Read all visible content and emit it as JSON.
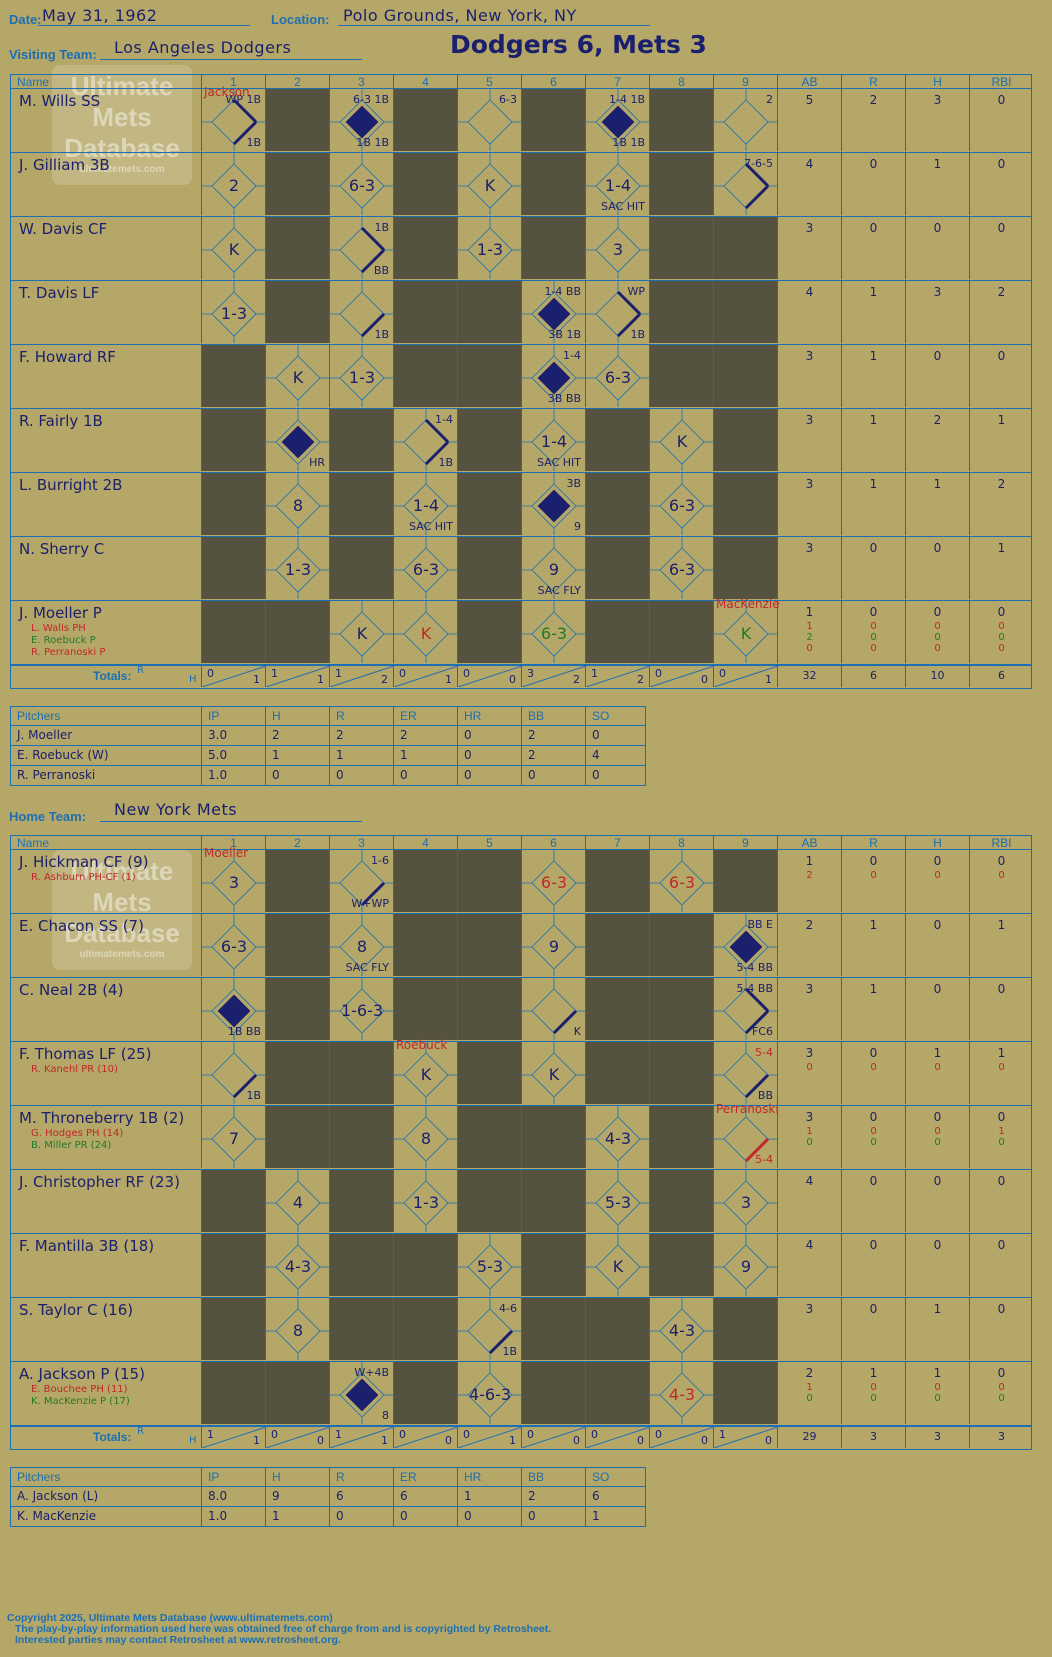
{
  "header": {
    "date_label": "Date:",
    "date": "May 31, 1962",
    "location_label": "Location:",
    "location": "Polo Grounds, New York, NY",
    "visiting_label": "Visiting Team:",
    "visiting_team": "Los Angeles Dodgers",
    "home_label": "Home Team:",
    "home_team": "New York Mets",
    "result": "Dodgers 6, Mets 3"
  },
  "logo": {
    "line1": "Ultimate",
    "line2": "Mets",
    "line3": "Database",
    "url": "ultimatemets.com"
  },
  "columns": [
    "Name",
    "1",
    "2",
    "3",
    "4",
    "5",
    "6",
    "7",
    "8",
    "9",
    "AB",
    "R",
    "H",
    "RBI"
  ],
  "totals_label": "Totals:",
  "rh_labels": {
    "r": "R",
    "h": "H"
  },
  "visitors": {
    "players": [
      {
        "name": "M. Wills SS",
        "stats": [
          "5",
          "2",
          "3",
          "0"
        ]
      },
      {
        "name": "J. Gilliam 3B",
        "stats": [
          "4",
          "0",
          "1",
          "0"
        ]
      },
      {
        "name": "W. Davis CF",
        "stats": [
          "3",
          "0",
          "0",
          "0"
        ]
      },
      {
        "name": "T. Davis LF",
        "stats": [
          "4",
          "1",
          "3",
          "2"
        ]
      },
      {
        "name": "F. Howard RF",
        "stats": [
          "3",
          "1",
          "0",
          "0"
        ]
      },
      {
        "name": "R. Fairly 1B",
        "stats": [
          "3",
          "1",
          "2",
          "1"
        ]
      },
      {
        "name": "L. Burright 2B",
        "stats": [
          "3",
          "1",
          "1",
          "2"
        ]
      },
      {
        "name": "N. Sherry C",
        "stats": [
          "3",
          "0",
          "0",
          "1"
        ]
      },
      {
        "name": "J. Moeller P",
        "stats": [
          "1",
          "0",
          "0",
          "0"
        ],
        "subs": [
          {
            "name": "L. Walls PH",
            "stats": [
              "1",
              "0",
              "0",
              "0"
            ],
            "color": "red"
          },
          {
            "name": "E. Roebuck P",
            "stats": [
              "2",
              "0",
              "0",
              "0"
            ],
            "color": "green"
          },
          {
            "name": "R. Perranoski P",
            "stats": [
              "0",
              "0",
              "0",
              "0"
            ],
            "color": "red"
          }
        ]
      }
    ],
    "innings": [
      [
        {
          "t": "WP 1B",
          "b": "1B",
          "note": "Jackson",
          "bases": 2
        },
        {
          "t": "",
          "dark": true
        },
        {
          "t": "6-3 1B",
          "b": "1B 1B",
          "run": true
        },
        {
          "t": "",
          "dark": true
        },
        {
          "t": "6-3",
          "c": ""
        },
        {
          "t": "",
          "dark": true
        },
        {
          "t": "1-4 1B",
          "b": "1B 1B",
          "run": true
        },
        {
          "t": "",
          "dark": true
        },
        {
          "t": "2",
          "c": ""
        }
      ],
      [
        {
          "c": "2"
        },
        {
          "dark": true
        },
        {
          "c": "6-3"
        },
        {
          "dark": true
        },
        {
          "c": "K"
        },
        {
          "dark": true
        },
        {
          "c": "1-4",
          "b": "SAC HIT"
        },
        {
          "dark": true
        },
        {
          "t": "7-6-5",
          "bases": 2
        }
      ],
      [
        {
          "c": "K"
        },
        {
          "dark": true
        },
        {
          "t": "1B",
          "b": "BB",
          "bases": 2
        },
        {
          "dark": true
        },
        {
          "c": "1-3"
        },
        {
          "dark": true
        },
        {
          "c": "3"
        },
        {
          "dark": true
        },
        {
          "dark": true
        }
      ],
      [
        {
          "c": "1-3"
        },
        {
          "dark": true
        },
        {
          "b": "1B",
          "bases": 1
        },
        {
          "dark": true
        },
        {
          "dark": true
        },
        {
          "t": "1-4 BB",
          "b": "3B 1B",
          "run": true
        },
        {
          "t": "WP",
          "b": "1B",
          "bases": 2
        },
        {
          "dark": true
        },
        {
          "dark": true
        }
      ],
      [
        {
          "dark": true
        },
        {
          "c": "K"
        },
        {
          "c": "1-3"
        },
        {
          "dark": true
        },
        {
          "dark": true
        },
        {
          "t": "1-4",
          "b": "3B BB",
          "run": true
        },
        {
          "c": "6-3"
        },
        {
          "dark": true
        },
        {
          "dark": true
        }
      ],
      [
        {
          "dark": true
        },
        {
          "b": "HR",
          "run": true
        },
        {
          "dark": true
        },
        {
          "t": "1-4",
          "b": "1B",
          "bases": 2
        },
        {
          "dark": true
        },
        {
          "c": "1-4",
          "b": "SAC HIT"
        },
        {
          "dark": true
        },
        {
          "c": "K"
        },
        {
          "dark": true
        }
      ],
      [
        {
          "dark": true
        },
        {
          "c": "8"
        },
        {
          "dark": true
        },
        {
          "c": "1-4",
          "b": "SAC HIT"
        },
        {
          "dark": true
        },
        {
          "t": "3B",
          "b": "9",
          "run": true
        },
        {
          "dark": true
        },
        {
          "c": "6-3"
        },
        {
          "dark": true
        }
      ],
      [
        {
          "dark": true
        },
        {
          "c": "1-3"
        },
        {
          "dark": true
        },
        {
          "c": "6-3"
        },
        {
          "dark": true
        },
        {
          "c": "9",
          "b": "SAC FLY"
        },
        {
          "dark": true
        },
        {
          "c": "6-3"
        },
        {
          "dark": true
        }
      ],
      [
        {
          "dark": true
        },
        {
          "dark": true
        },
        {
          "c": "K"
        },
        {
          "c": "K",
          "cc": "red"
        },
        {
          "dark": true
        },
        {
          "c": "6-3",
          "cc": "green"
        },
        {
          "dark": true
        },
        {
          "dark": true
        },
        {
          "c": "K",
          "cc": "green",
          "note": "MacKenzie"
        }
      ]
    ],
    "totals": [
      [
        "0",
        "1"
      ],
      [
        "1",
        "1"
      ],
      [
        "1",
        "2"
      ],
      [
        "0",
        "1"
      ],
      [
        "0",
        "0"
      ],
      [
        "3",
        "2"
      ],
      [
        "1",
        "2"
      ],
      [
        "0",
        "0"
      ],
      [
        "0",
        "1"
      ]
    ],
    "stat_totals": [
      "32",
      "6",
      "10",
      "6"
    ]
  },
  "visitor_pitchers": {
    "headers": [
      "Pitchers",
      "IP",
      "H",
      "R",
      "ER",
      "HR",
      "BB",
      "SO"
    ],
    "rows": [
      [
        "J. Moeller",
        "3.0",
        "2",
        "2",
        "2",
        "0",
        "2",
        "0"
      ],
      [
        "E. Roebuck (W)",
        "5.0",
        "1",
        "1",
        "1",
        "0",
        "2",
        "4"
      ],
      [
        "R. Perranoski",
        "1.0",
        "0",
        "0",
        "0",
        "0",
        "0",
        "0"
      ]
    ]
  },
  "home": {
    "players": [
      {
        "name": "J. Hickman CF (9)",
        "stats": [
          "1",
          "0",
          "0",
          "0"
        ],
        "subs": [
          {
            "name": "R. Ashburn PH-CF (1)",
            "stats": [
              "2",
              "0",
              "0",
              "0"
            ],
            "color": "red"
          }
        ]
      },
      {
        "name": "E. Chacon SS (7)",
        "stats": [
          "2",
          "1",
          "0",
          "1"
        ]
      },
      {
        "name": "C. Neal 2B (4)",
        "stats": [
          "3",
          "1",
          "0",
          "0"
        ]
      },
      {
        "name": "F. Thomas LF (25)",
        "stats": [
          "3",
          "0",
          "1",
          "1"
        ],
        "subs": [
          {
            "name": "R. Kanehl PR (10)",
            "stats": [
              "0",
              "0",
              "0",
              "0"
            ],
            "color": "red"
          }
        ]
      },
      {
        "name": "M. Throneberry 1B (2)",
        "stats": [
          "3",
          "0",
          "0",
          "0"
        ],
        "subs": [
          {
            "name": "G. Hodges PH (14)",
            "stats": [
              "1",
              "0",
              "0",
              "1"
            ],
            "color": "red"
          },
          {
            "name": "B. Miller PR (24)",
            "stats": [
              "0",
              "0",
              "0",
              "0"
            ],
            "color": "green"
          }
        ]
      },
      {
        "name": "J. Christopher RF (23)",
        "stats": [
          "4",
          "0",
          "0",
          "0"
        ]
      },
      {
        "name": "F. Mantilla 3B (18)",
        "stats": [
          "4",
          "0",
          "0",
          "0"
        ]
      },
      {
        "name": "S. Taylor C (16)",
        "stats": [
          "3",
          "0",
          "1",
          "0"
        ]
      },
      {
        "name": "A. Jackson P (15)",
        "stats": [
          "2",
          "1",
          "1",
          "0"
        ],
        "subs": [
          {
            "name": "E. Bouchee PH (11)",
            "stats": [
              "1",
              "0",
              "0",
              "0"
            ],
            "color": "red"
          },
          {
            "name": "K. MacKenzie P (17)",
            "stats": [
              "0",
              "0",
              "0",
              "0"
            ],
            "color": "green"
          }
        ]
      }
    ],
    "innings": [
      [
        {
          "c": "3",
          "note": "Moeller"
        },
        {
          "dark": true
        },
        {
          "t": "1-6",
          "b": "W+WP",
          "bases": 1
        },
        {
          "dark": true
        },
        {
          "dark": true
        },
        {
          "c": "6-3",
          "cc": "red"
        },
        {
          "dark": true
        },
        {
          "c": "6-3",
          "cc": "red"
        },
        {
          "dark": true
        }
      ],
      [
        {
          "c": "6-3"
        },
        {
          "dark": true
        },
        {
          "c": "8",
          "b": "SAC FLY"
        },
        {
          "dark": true
        },
        {
          "dark": true
        },
        {
          "c": "9"
        },
        {
          "dark": true
        },
        {
          "dark": true
        },
        {
          "t": "BB E",
          "b": "5-4 BB",
          "run": true
        }
      ],
      [
        {
          "b": "1B BB",
          "run": true
        },
        {
          "dark": true
        },
        {
          "c": "1-6-3"
        },
        {
          "dark": true
        },
        {
          "dark": true
        },
        {
          "b": "K",
          "bases": 1
        },
        {
          "dark": true
        },
        {
          "dark": true
        },
        {
          "t": "5-4 BB",
          "b": "FC6",
          "bases": 2
        }
      ],
      [
        {
          "b": "1B",
          "bases": 1
        },
        {
          "dark": true
        },
        {
          "dark": true
        },
        {
          "c": "K",
          "note": "Roebuck"
        },
        {
          "dark": true
        },
        {
          "c": "K"
        },
        {
          "dark": true
        },
        {
          "dark": true
        },
        {
          "t": "5-4",
          "b": "BB",
          "bases": 1,
          "tc": "red"
        }
      ],
      [
        {
          "c": "7"
        },
        {
          "dark": true
        },
        {
          "dark": true
        },
        {
          "c": "8"
        },
        {
          "dark": true
        },
        {
          "dark": true
        },
        {
          "c": "4-3"
        },
        {
          "dark": true
        },
        {
          "b": "5-4",
          "bases": 1,
          "bc": "red",
          "note": "Perranoski"
        }
      ],
      [
        {
          "dark": true
        },
        {
          "c": "4"
        },
        {
          "dark": true
        },
        {
          "c": "1-3"
        },
        {
          "dark": true
        },
        {
          "dark": true
        },
        {
          "c": "5-3"
        },
        {
          "dark": true
        },
        {
          "c": "3"
        }
      ],
      [
        {
          "dark": true
        },
        {
          "c": "4-3"
        },
        {
          "dark": true
        },
        {
          "dark": true
        },
        {
          "c": "5-3"
        },
        {
          "dark": true
        },
        {
          "c": "K"
        },
        {
          "dark": true
        },
        {
          "c": "9"
        }
      ],
      [
        {
          "dark": true
        },
        {
          "c": "8"
        },
        {
          "dark": true
        },
        {
          "dark": true
        },
        {
          "t": "4-6",
          "b": "1B",
          "bases": 1
        },
        {
          "dark": true
        },
        {
          "dark": true
        },
        {
          "c": "4-3"
        },
        {
          "dark": true
        }
      ],
      [
        {
          "dark": true
        },
        {
          "dark": true
        },
        {
          "t": "W+4B",
          "b": "8",
          "run": true
        },
        {
          "dark": true
        },
        {
          "c": "4-6-3"
        },
        {
          "dark": true
        },
        {
          "dark": true
        },
        {
          "c": "4-3",
          "cc": "red"
        },
        {
          "dark": true
        }
      ]
    ],
    "totals": [
      [
        "1",
        "1"
      ],
      [
        "0",
        "0"
      ],
      [
        "1",
        "1"
      ],
      [
        "0",
        "0"
      ],
      [
        "0",
        "1"
      ],
      [
        "0",
        "0"
      ],
      [
        "0",
        "0"
      ],
      [
        "0",
        "0"
      ],
      [
        "1",
        "0"
      ]
    ],
    "stat_totals": [
      "29",
      "3",
      "3",
      "3"
    ]
  },
  "home_pitchers": {
    "headers": [
      "Pitchers",
      "IP",
      "H",
      "R",
      "ER",
      "HR",
      "BB",
      "SO"
    ],
    "rows": [
      [
        "A. Jackson (L)",
        "8.0",
        "9",
        "6",
        "6",
        "1",
        "2",
        "6"
      ],
      [
        "K. MacKenzie",
        "1.0",
        "1",
        "0",
        "0",
        "0",
        "0",
        "1"
      ]
    ]
  },
  "footer": {
    "line1": "Copyright 2025, Ultimate Mets Database (www.ultimatemets.com)",
    "line2": "The play-by-play information used here was obtained free of charge from and is copyrighted by Retrosheet.",
    "line3": "Interested parties may contact Retrosheet at www.retrosheet.org."
  },
  "colors": {
    "paper": "#b5a767",
    "grid": "#1c6fb3",
    "ink": "#1a1f6e",
    "dark_cell": "#565240",
    "red": "#c0282a",
    "green": "#1f7a2a"
  }
}
